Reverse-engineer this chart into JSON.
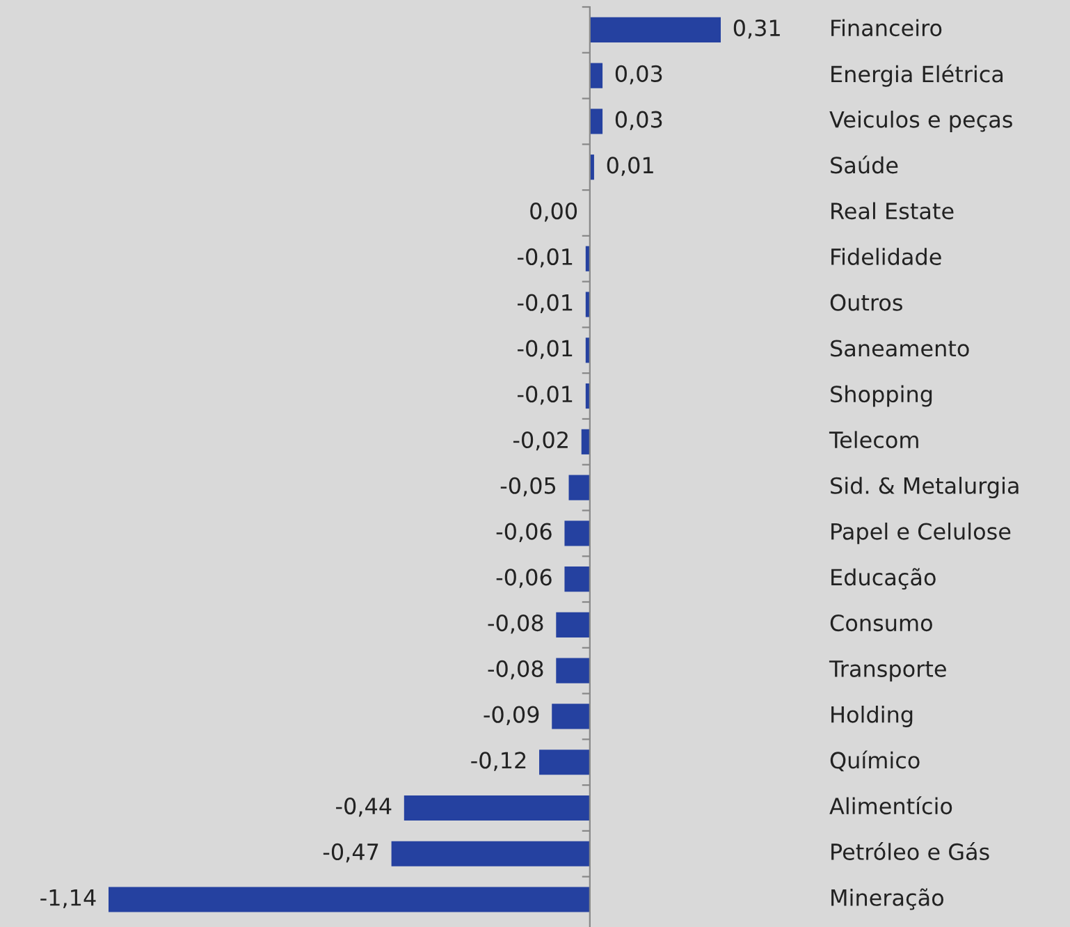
{
  "chart_data": {
    "type": "bar",
    "orientation": "horizontal",
    "color": "#2541a0",
    "categories": [
      "Financeiro",
      "Energia Elétrica",
      "Veiculos e peças",
      "Saúde",
      "Real Estate",
      "Fidelidade",
      "Outros",
      "Saneamento",
      "Shopping",
      "Telecom",
      "Sid. & Metalurgia",
      "Papel e Celulose",
      "Educação",
      "Consumo",
      "Transporte",
      "Holding",
      "Químico",
      "Alimentício",
      "Petróleo e Gás",
      "Mineração"
    ],
    "values": [
      0.31,
      0.03,
      0.03,
      0.01,
      0.0,
      -0.01,
      -0.01,
      -0.01,
      -0.01,
      -0.02,
      -0.05,
      -0.06,
      -0.06,
      -0.08,
      -0.08,
      -0.09,
      -0.12,
      -0.44,
      -0.47,
      -1.14
    ],
    "value_labels": [
      "0,31",
      "0,03",
      "0,03",
      "0,01",
      "0,00",
      "-0,01",
      "-0,01",
      "-0,01",
      "-0,01",
      "-0,02",
      "-0,05",
      "-0,06",
      "-0,06",
      "-0,08",
      "-0,08",
      "-0,09",
      "-0,12",
      "-0,44",
      "-0,47",
      "-1,14"
    ],
    "grid": false,
    "legend": false
  }
}
